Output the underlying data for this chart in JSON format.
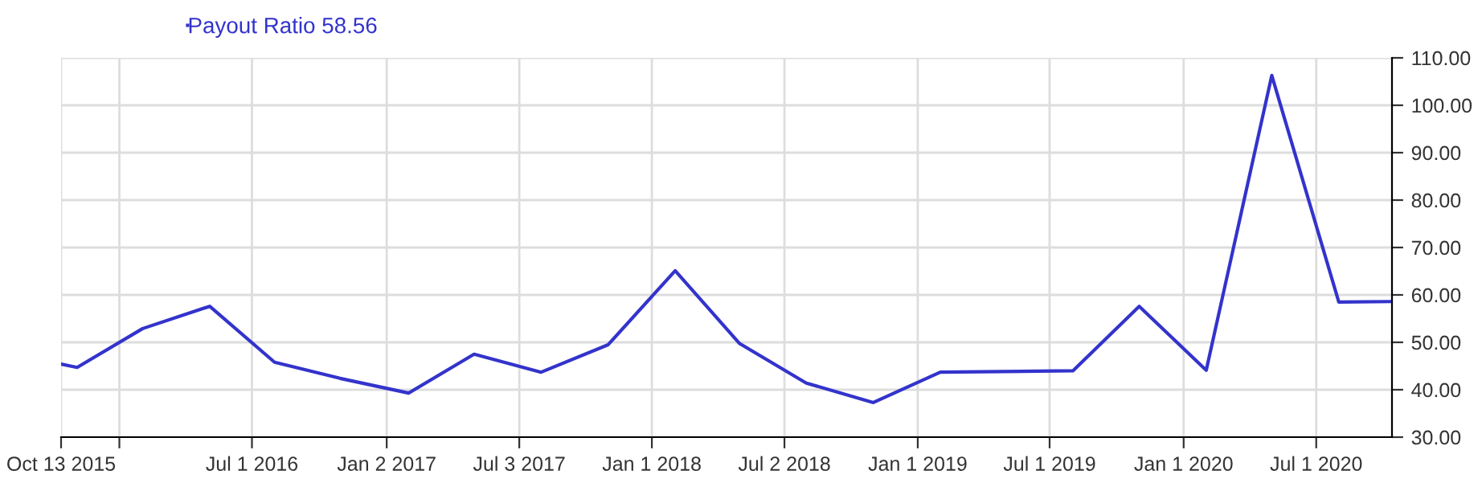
{
  "chart_data": {
    "type": "line",
    "x": [
      "2015-10-13",
      "2015-11-04",
      "2016-02-02",
      "2016-05-04",
      "2016-08-01",
      "2016-10-30",
      "2017-02-01",
      "2017-05-02",
      "2017-08-02",
      "2017-11-02",
      "2018-02-02",
      "2018-05-01",
      "2018-08-01",
      "2018-11-01",
      "2019-02-01",
      "2019-08-02",
      "2019-11-01",
      "2020-02-01",
      "2020-05-01",
      "2020-08-01",
      "2020-10-13"
    ],
    "series": [
      {
        "name": "Payout Ratio 58.56",
        "color": "#3333cc",
        "values": [
          45.4,
          44.7,
          52.9,
          57.6,
          45.8,
          42.4,
          39.3,
          47.5,
          43.7,
          49.5,
          65.1,
          49.8,
          41.4,
          37.3,
          43.7,
          44.0,
          57.6,
          44.1,
          106.3,
          58.5,
          58.6
        ]
      }
    ],
    "xlim": [
      "2015-10-13",
      "2020-10-13"
    ],
    "xticks": [
      {
        "value": "2015-10-13",
        "label": "Oct 13 2015"
      },
      {
        "value": "2016-01-01",
        "label": null
      },
      {
        "value": "2016-07-01",
        "label": "Jul 1 2016"
      },
      {
        "value": "2017-01-02",
        "label": "Jan 2 2017"
      },
      {
        "value": "2017-07-03",
        "label": "Jul 3 2017"
      },
      {
        "value": "2018-01-01",
        "label": "Jan 1 2018"
      },
      {
        "value": "2018-07-02",
        "label": "Jul 2 2018"
      },
      {
        "value": "2019-01-01",
        "label": "Jan 1 2019"
      },
      {
        "value": "2019-07-01",
        "label": "Jul 1 2019"
      },
      {
        "value": "2020-01-01",
        "label": "Jan 1 2020"
      },
      {
        "value": "2020-07-01",
        "label": "Jul 1 2020"
      }
    ],
    "ylim": [
      30,
      110
    ],
    "yticks": [
      {
        "value": 30,
        "label": "30.00"
      },
      {
        "value": 40,
        "label": "40.00"
      },
      {
        "value": 50,
        "label": "50.00"
      },
      {
        "value": 60,
        "label": "60.00"
      },
      {
        "value": 70,
        "label": "70.00"
      },
      {
        "value": 80,
        "label": "80.00"
      },
      {
        "value": 90,
        "label": "90.00"
      },
      {
        "value": 100,
        "label": "100.00"
      },
      {
        "value": 110,
        "label": "110.00"
      }
    ],
    "grid": true,
    "legend": "top left",
    "marker": "none",
    "line_style": "solid"
  }
}
